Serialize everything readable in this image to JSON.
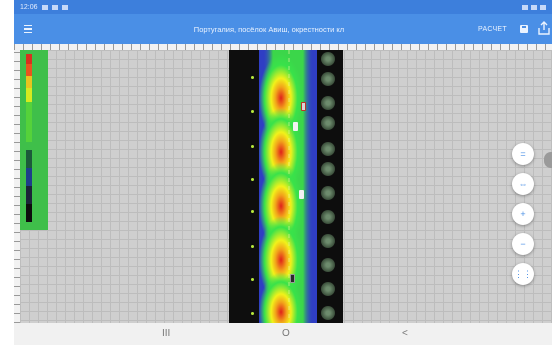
{
  "status_bar": {
    "time": "12:06"
  },
  "app_bar": {
    "title": "Португалия, посёлок Авиш, окрестности кл",
    "calc_label": "РАСЧЕТ"
  },
  "icons": {
    "menu": "menu-icon",
    "save": "save-icon",
    "share": "share-icon",
    "fabs": [
      "zoom-fit-icon",
      "zoom-width-icon",
      "zoom-in-icon",
      "zoom-out-icon",
      "grid-icon"
    ]
  },
  "fabs": [
    {
      "symbol": "="
    },
    {
      "symbol": "⇔"
    },
    {
      "symbol": "+"
    },
    {
      "symbol": "−"
    },
    {
      "symbol": "⋮⋮"
    }
  ],
  "nav_bar": {
    "recent": "III",
    "home": "O",
    "back": "<"
  },
  "colors": {
    "app_bar": "#4a8fe6",
    "status_bar": "#3d7fdc",
    "road": "#2f3ec4",
    "legend_bg": "#3fbf4a",
    "heat_low": "#39e24a",
    "heat_mid": "#f2f21a",
    "heat_high": "#e0201a"
  }
}
